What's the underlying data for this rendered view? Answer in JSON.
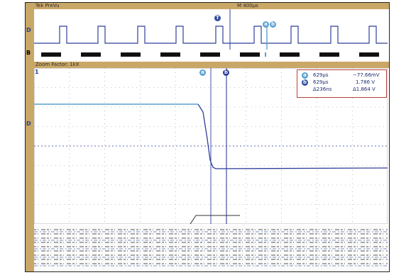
{
  "overview": {
    "left_label": "Tek PreVu",
    "center_label": "M 400µs",
    "trigger_marker": "T",
    "cursor_markers": [
      "a",
      "b"
    ],
    "channel_marker": "D",
    "bottom_marker": "B"
  },
  "zoom": {
    "label": "Zoom Factor: 1kX",
    "top_left_marker": "1",
    "channel_marker": "D"
  },
  "cursors": {
    "a_marker": "a",
    "b_marker": "b"
  },
  "readout": {
    "rows": [
      {
        "marker": "a",
        "time": "629µs",
        "value": "−77.66mV"
      },
      {
        "marker": "b",
        "time": "629µs",
        "value": "1.786 V"
      },
      {
        "marker": "",
        "time": "Δ236ns",
        "value": "Δ1.864 V"
      }
    ]
  },
  "colors": {
    "accent": "#c9a767",
    "trace": "#2f3f9a",
    "grid": "#7a7a7a",
    "reference": "#5aa0cf",
    "readout_border": "#b7403c"
  }
}
